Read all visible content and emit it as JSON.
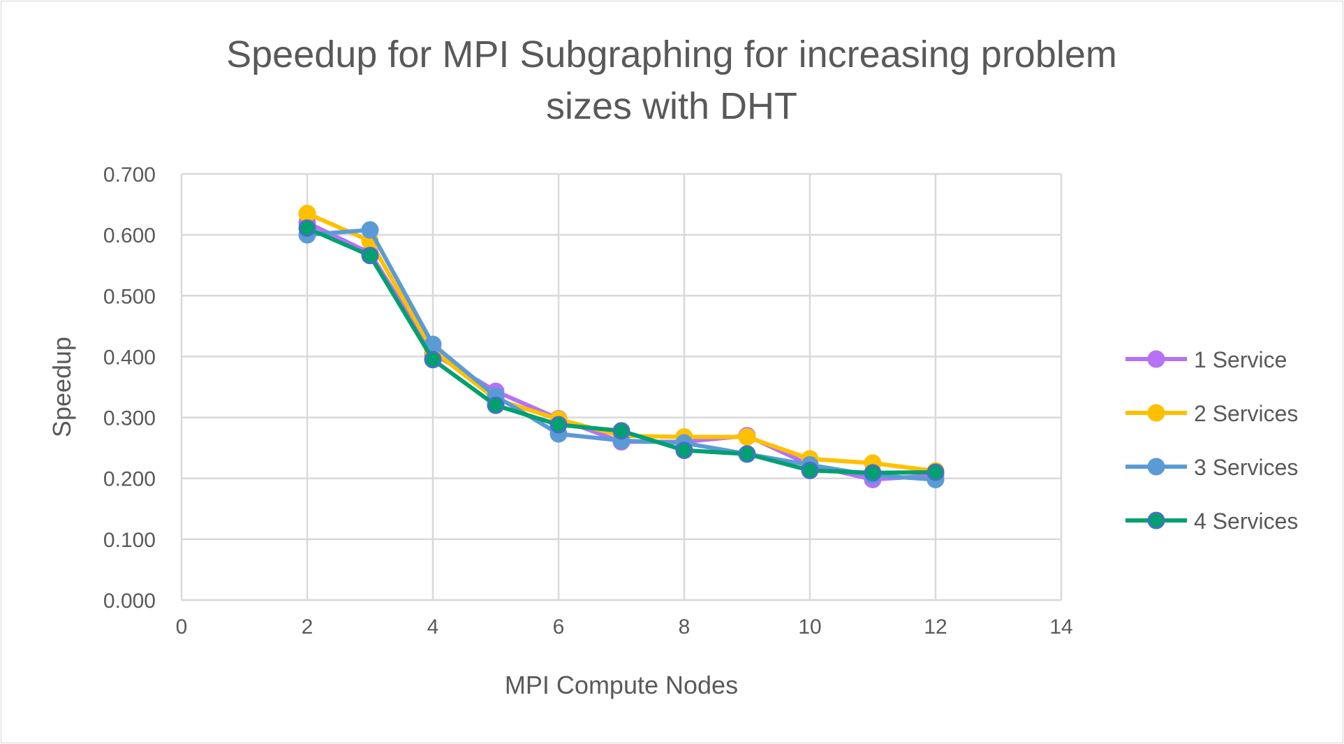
{
  "chart_data": {
    "type": "line",
    "title": "Speedup for MPI Subgraphing for increasing problem sizes with DHT",
    "title_lines": [
      "Speedup for MPI Subgraphing for increasing problem",
      "sizes with DHT"
    ],
    "xlabel": "MPI Compute Nodes",
    "ylabel": "Speedup",
    "xlim": [
      0,
      14
    ],
    "ylim": [
      0,
      0.7
    ],
    "xticks": [
      "0",
      "2",
      "4",
      "6",
      "8",
      "10",
      "12",
      "14"
    ],
    "yticks": [
      "0.000",
      "0.100",
      "0.200",
      "0.300",
      "0.400",
      "0.500",
      "0.600",
      "0.700"
    ],
    "grid": true,
    "legend_position": "right",
    "x": [
      2,
      3,
      4,
      5,
      6,
      7,
      8,
      9,
      10,
      11,
      12
    ],
    "series": [
      {
        "name": "1 Service",
        "color": "#b572f5",
        "values": [
          0.62,
          0.57,
          0.405,
          0.343,
          0.298,
          0.26,
          0.26,
          0.27,
          0.222,
          0.198,
          0.205
        ]
      },
      {
        "name": "2 Services",
        "color": "#ffc000",
        "values": [
          0.635,
          0.59,
          0.41,
          0.33,
          0.297,
          0.27,
          0.268,
          0.268,
          0.232,
          0.225,
          0.212
        ]
      },
      {
        "name": "3 Services",
        "color": "#5b9bd5",
        "values": [
          0.6,
          0.608,
          0.42,
          0.335,
          0.273,
          0.262,
          0.258,
          0.24,
          0.222,
          0.205,
          0.198
        ]
      },
      {
        "name": "4 Services",
        "color": "#00a070",
        "values": [
          0.611,
          0.566,
          0.395,
          0.32,
          0.288,
          0.278,
          0.246,
          0.24,
          0.213,
          0.209,
          0.21
        ]
      }
    ]
  }
}
